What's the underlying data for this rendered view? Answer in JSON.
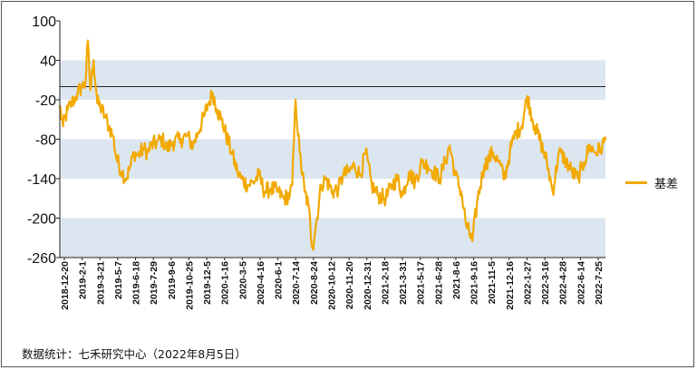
{
  "chart_data": {
    "type": "line",
    "title": "",
    "xlabel": "",
    "ylabel": "",
    "ylim": [
      -260,
      100
    ],
    "y_ticks": [
      100,
      40,
      -20,
      -80,
      -140,
      -200,
      -260
    ],
    "y_tick_labels": [
      "100",
      "40",
      "-20",
      "-80",
      "-140",
      "-200",
      "-260"
    ],
    "reference_line": 0,
    "x_range": [
      "2018-12-20",
      "2022-08-05"
    ],
    "x_ticks": [
      "2018-12-20",
      "2019-2-1",
      "2019-3-21",
      "2019-5-7",
      "2019-6-18",
      "2019-7-29",
      "2019-9-6",
      "2019-10-25",
      "2019-12-5",
      "2020-1-16",
      "2020-3-5",
      "2020-4-16",
      "2020-6-1",
      "2020-7-14",
      "2020-8-24",
      "2020-10-12",
      "2020-11-20",
      "2020-12-31",
      "2021-2-18",
      "2021-3-31",
      "2021-5-17",
      "2021-6-28",
      "2021-8-6",
      "2021-9-16",
      "2021-11-5",
      "2021-12-16",
      "2022-1-27",
      "2022-3-16",
      "2022-4-28",
      "2022-6-14",
      "2022-7-25"
    ],
    "bands": [
      [
        -20,
        40
      ],
      [
        -140,
        -80
      ],
      [
        -260,
        -200
      ]
    ],
    "band_color": "#DCE6F1",
    "legend_position": "right",
    "series": [
      {
        "name": "基差",
        "color": "#F2A900",
        "x": [
          "2018-12-20",
          "2018-12-28",
          "2019-1-8",
          "2019-1-18",
          "2019-1-28",
          "2019-2-1",
          "2019-2-12",
          "2019-2-20",
          "2019-2-26",
          "2019-3-4",
          "2019-3-12",
          "2019-3-21",
          "2019-3-28",
          "2019-4-8",
          "2019-4-18",
          "2019-4-28",
          "2019-5-7",
          "2019-5-20",
          "2019-5-30",
          "2019-6-10",
          "2019-6-18",
          "2019-6-28",
          "2019-7-10",
          "2019-7-22",
          "2019-7-29",
          "2019-8-12",
          "2019-8-26",
          "2019-9-6",
          "2019-9-20",
          "2019-10-10",
          "2019-10-25",
          "2019-11-8",
          "2019-11-20",
          "2019-12-5",
          "2019-12-16",
          "2019-12-26",
          "2020-1-6",
          "2020-1-16",
          "2020-2-10",
          "2020-2-24",
          "2020-3-5",
          "2020-3-20",
          "2020-4-2",
          "2020-4-16",
          "2020-4-30",
          "2020-5-15",
          "2020-6-1",
          "2020-6-15",
          "2020-6-30",
          "2020-7-6",
          "2020-7-14",
          "2020-7-24",
          "2020-8-5",
          "2020-8-14",
          "2020-8-24",
          "2020-9-4",
          "2020-9-14",
          "2020-9-25",
          "2020-10-12",
          "2020-10-26",
          "2020-11-6",
          "2020-11-20",
          "2020-12-4",
          "2020-12-18",
          "2020-12-31",
          "2021-1-15",
          "2021-1-29",
          "2021-2-18",
          "2021-3-5",
          "2021-3-18",
          "2021-3-31",
          "2021-4-15",
          "2021-4-30",
          "2021-5-17",
          "2021-5-31",
          "2021-6-15",
          "2021-6-28",
          "2021-7-12",
          "2021-7-23",
          "2021-8-6",
          "2021-8-20",
          "2021-9-1",
          "2021-9-16",
          "2021-9-29",
          "2021-10-15",
          "2021-11-5",
          "2021-11-19",
          "2021-12-3",
          "2021-12-16",
          "2021-12-30",
          "2022-1-14",
          "2022-1-27",
          "2022-2-14",
          "2022-3-1",
          "2022-3-16",
          "2022-3-30",
          "2022-4-14",
          "2022-4-28",
          "2022-5-16",
          "2022-5-30",
          "2022-6-14",
          "2022-6-28",
          "2022-7-11",
          "2022-7-25",
          "2022-8-5"
        ],
        "values": [
          -30,
          -60,
          -35,
          -25,
          -15,
          -10,
          0,
          5,
          70,
          -5,
          40,
          -25,
          -30,
          -45,
          -60,
          -75,
          -110,
          -130,
          -140,
          -120,
          -100,
          -105,
          -95,
          -100,
          -90,
          -85,
          -80,
          -95,
          -85,
          -80,
          -75,
          -90,
          -70,
          -45,
          -25,
          -10,
          -35,
          -50,
          -100,
          -130,
          -140,
          -150,
          -145,
          -135,
          -160,
          -155,
          -160,
          -170,
          -165,
          -150,
          -20,
          -100,
          -160,
          -180,
          -245,
          -200,
          -150,
          -140,
          -160,
          -155,
          -135,
          -130,
          -120,
          -135,
          -100,
          -150,
          -165,
          -170,
          -150,
          -140,
          -165,
          -130,
          -145,
          -115,
          -120,
          -130,
          -140,
          -115,
          -90,
          -135,
          -160,
          -210,
          -235,
          -170,
          -120,
          -100,
          -115,
          -140,
          -100,
          -70,
          -60,
          -15,
          -60,
          -85,
          -115,
          -160,
          -100,
          -110,
          -130,
          -140,
          -115,
          -90,
          -100,
          -95,
          -80
        ]
      }
    ]
  },
  "legend": {
    "label": "基差"
  },
  "footer": {
    "source": "数据统计：七禾研究中心（2022年8月5日）"
  }
}
